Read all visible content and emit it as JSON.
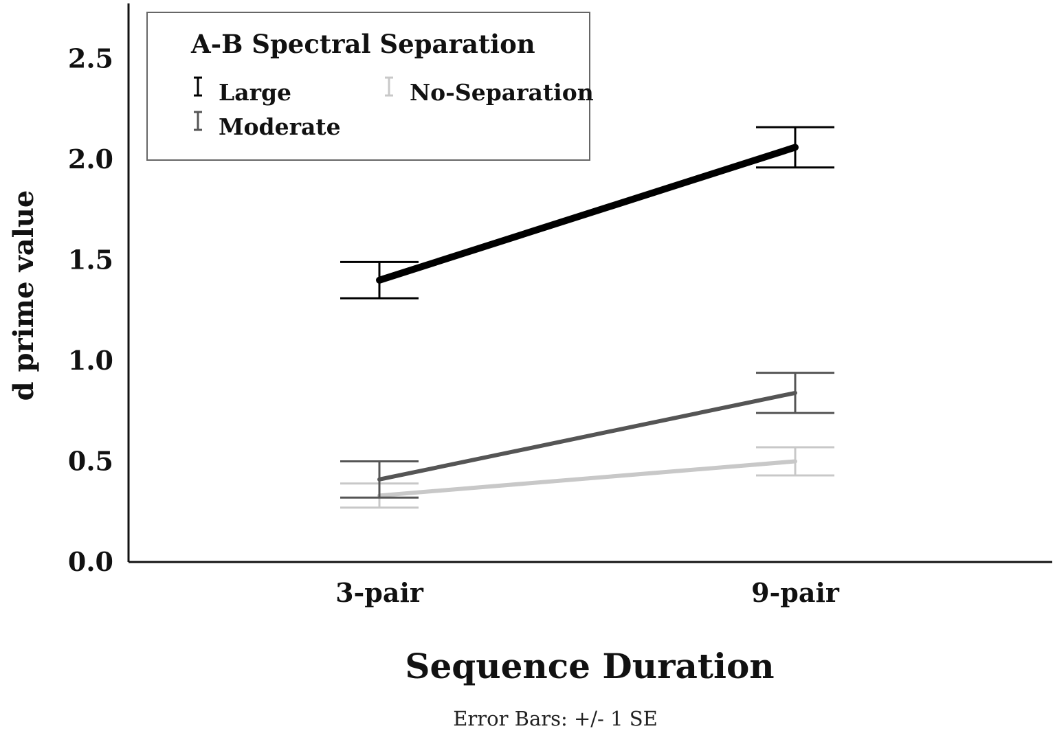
{
  "chart_data": {
    "type": "line",
    "categories": [
      "3-pair",
      "9-pair"
    ],
    "xlabel": "Sequence Duration",
    "ylabel": "d prime value",
    "ylim": [
      0,
      2.75
    ],
    "yticks": [
      "0.0",
      "0.5",
      "1.0",
      "1.5",
      "2.0",
      "2.5"
    ],
    "grid": false,
    "note": "Error Bars: +/- 1 SE",
    "legend": {
      "title": "A-B Spectral Separation",
      "placement": "top-left"
    },
    "series": [
      {
        "name": "Large",
        "color": "#000000",
        "values": [
          1.4,
          2.06
        ],
        "err": [
          0.09,
          0.1
        ]
      },
      {
        "name": "Moderate",
        "color": "#555555",
        "values": [
          0.41,
          0.84
        ],
        "err": [
          0.09,
          0.1
        ]
      },
      {
        "name": "No-Separation",
        "color": "#c8c8c8",
        "values": [
          0.33,
          0.5
        ],
        "err": [
          0.06,
          0.07
        ]
      }
    ]
  }
}
